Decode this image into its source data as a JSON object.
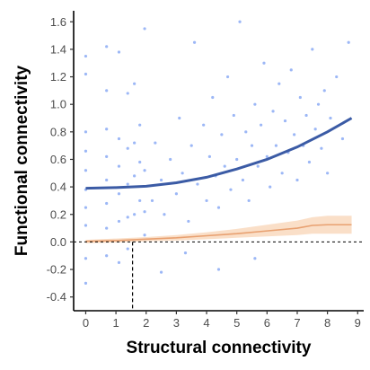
{
  "colors": {
    "points": "#4A7BEF",
    "fit_line": "#3B5BA5",
    "null_line": "#E8A070",
    "null_band": "#F6C9A3",
    "axis": "#000000",
    "ref_line": "#000000"
  },
  "chart_data": {
    "type": "scatter",
    "title": "",
    "xlabel": "Structural connectivity",
    "ylabel": "Functional connectivity",
    "xlim": [
      -0.4,
      9.2
    ],
    "ylim": [
      -0.5,
      1.68
    ],
    "x_ticks": [
      0,
      1,
      2,
      3,
      4,
      5,
      6,
      7,
      8,
      9
    ],
    "x_tick_labels": [
      "0",
      "1",
      "2",
      "3",
      "4",
      "5",
      "6",
      "7",
      "8",
      "9"
    ],
    "y_ticks": [
      -0.4,
      -0.2,
      0.0,
      0.2,
      0.4,
      0.6,
      0.8,
      1.0,
      1.2,
      1.4,
      1.6
    ],
    "y_tick_labels": [
      "-0.4",
      "-0.2",
      "0.0",
      "0.2",
      "0.4",
      "0.6",
      "0.8",
      "1.0",
      "1.2",
      "1.4",
      "1.6"
    ],
    "grid": false,
    "legend": "none",
    "scatter_points": [
      [
        0.0,
        0.12
      ],
      [
        0.0,
        0.25
      ],
      [
        0.0,
        0.38
      ],
      [
        0.0,
        0.52
      ],
      [
        0.0,
        0.66
      ],
      [
        0.0,
        0.8
      ],
      [
        0.0,
        1.22
      ],
      [
        0.0,
        1.35
      ],
      [
        0.0,
        -0.3
      ],
      [
        0.0,
        -0.12
      ],
      [
        0.69,
        0.1
      ],
      [
        0.69,
        0.28
      ],
      [
        0.69,
        0.45
      ],
      [
        0.69,
        0.62
      ],
      [
        0.69,
        0.82
      ],
      [
        0.69,
        1.1
      ],
      [
        0.69,
        1.42
      ],
      [
        0.69,
        -0.1
      ],
      [
        1.1,
        0.15
      ],
      [
        1.1,
        0.35
      ],
      [
        1.1,
        0.55
      ],
      [
        1.1,
        0.75
      ],
      [
        1.1,
        1.38
      ],
      [
        1.1,
        -0.15
      ],
      [
        1.39,
        0.18
      ],
      [
        1.39,
        0.42
      ],
      [
        1.39,
        0.68
      ],
      [
        1.39,
        1.08
      ],
      [
        1.39,
        -0.05
      ],
      [
        1.61,
        0.2
      ],
      [
        1.61,
        0.48
      ],
      [
        1.61,
        0.72
      ],
      [
        1.61,
        1.15
      ],
      [
        1.79,
        0.3
      ],
      [
        1.79,
        0.58
      ],
      [
        1.79,
        0.85
      ],
      [
        1.95,
        0.22
      ],
      [
        1.95,
        0.52
      ],
      [
        1.95,
        1.55
      ],
      [
        1.95,
        0.05
      ],
      [
        2.2,
        0.3
      ],
      [
        2.3,
        0.72
      ],
      [
        2.5,
        0.45
      ],
      [
        2.6,
        0.2
      ],
      [
        2.8,
        0.6
      ],
      [
        3.0,
        0.35
      ],
      [
        3.1,
        0.9
      ],
      [
        3.2,
        0.5
      ],
      [
        3.4,
        0.15
      ],
      [
        3.5,
        0.7
      ],
      [
        3.6,
        1.45
      ],
      [
        3.7,
        0.42
      ],
      [
        3.9,
        0.85
      ],
      [
        4.0,
        0.3
      ],
      [
        4.1,
        0.62
      ],
      [
        4.2,
        1.05
      ],
      [
        4.3,
        0.48
      ],
      [
        4.4,
        0.25
      ],
      [
        4.5,
        0.78
      ],
      [
        4.6,
        0.55
      ],
      [
        4.7,
        1.2
      ],
      [
        4.8,
        0.38
      ],
      [
        4.9,
        0.92
      ],
      [
        5.0,
        0.6
      ],
      [
        5.1,
        1.6
      ],
      [
        5.2,
        0.45
      ],
      [
        5.3,
        0.8
      ],
      [
        5.4,
        0.3
      ],
      [
        5.5,
        0.7
      ],
      [
        5.6,
        1.0
      ],
      [
        5.7,
        0.55
      ],
      [
        5.8,
        0.85
      ],
      [
        5.9,
        1.3
      ],
      [
        6.0,
        0.62
      ],
      [
        6.1,
        0.4
      ],
      [
        6.2,
        0.95
      ],
      [
        6.3,
        0.7
      ],
      [
        6.4,
        1.15
      ],
      [
        6.5,
        0.5
      ],
      [
        6.6,
        0.88
      ],
      [
        6.7,
        0.65
      ],
      [
        6.8,
        1.25
      ],
      [
        6.9,
        0.78
      ],
      [
        7.0,
        0.45
      ],
      [
        7.1,
        1.05
      ],
      [
        7.2,
        0.7
      ],
      [
        7.3,
        0.92
      ],
      [
        7.4,
        0.58
      ],
      [
        7.5,
        1.4
      ],
      [
        7.6,
        0.82
      ],
      [
        7.7,
        1.0
      ],
      [
        7.8,
        0.68
      ],
      [
        7.9,
        1.1
      ],
      [
        8.0,
        0.5
      ],
      [
        8.1,
        0.9
      ],
      [
        8.3,
        1.2
      ],
      [
        8.5,
        0.75
      ],
      [
        8.7,
        1.45
      ],
      [
        3.3,
        -0.08
      ],
      [
        4.4,
        -0.2
      ],
      [
        5.6,
        -0.12
      ],
      [
        2.5,
        -0.22
      ]
    ],
    "fit_line": {
      "x": [
        0,
        1,
        2,
        3,
        4,
        5,
        6,
        7,
        8,
        8.8
      ],
      "y": [
        0.39,
        0.395,
        0.405,
        0.43,
        0.47,
        0.53,
        0.6,
        0.69,
        0.8,
        0.9
      ]
    },
    "null_line": {
      "x": [
        0,
        1,
        2,
        3,
        4,
        5,
        6,
        7,
        7.5,
        8,
        8.8
      ],
      "y": [
        0.005,
        0.01,
        0.02,
        0.03,
        0.045,
        0.06,
        0.08,
        0.1,
        0.12,
        0.125,
        0.125
      ],
      "lower": [
        -0.01,
        -0.005,
        0.005,
        0.01,
        0.02,
        0.03,
        0.04,
        0.05,
        0.06,
        0.06,
        0.06
      ],
      "upper": [
        0.015,
        0.025,
        0.035,
        0.05,
        0.07,
        0.095,
        0.125,
        0.155,
        0.18,
        0.19,
        0.19
      ]
    },
    "reference_lines": {
      "horizontal_y": 0.0,
      "vertical_x": 1.55
    }
  }
}
